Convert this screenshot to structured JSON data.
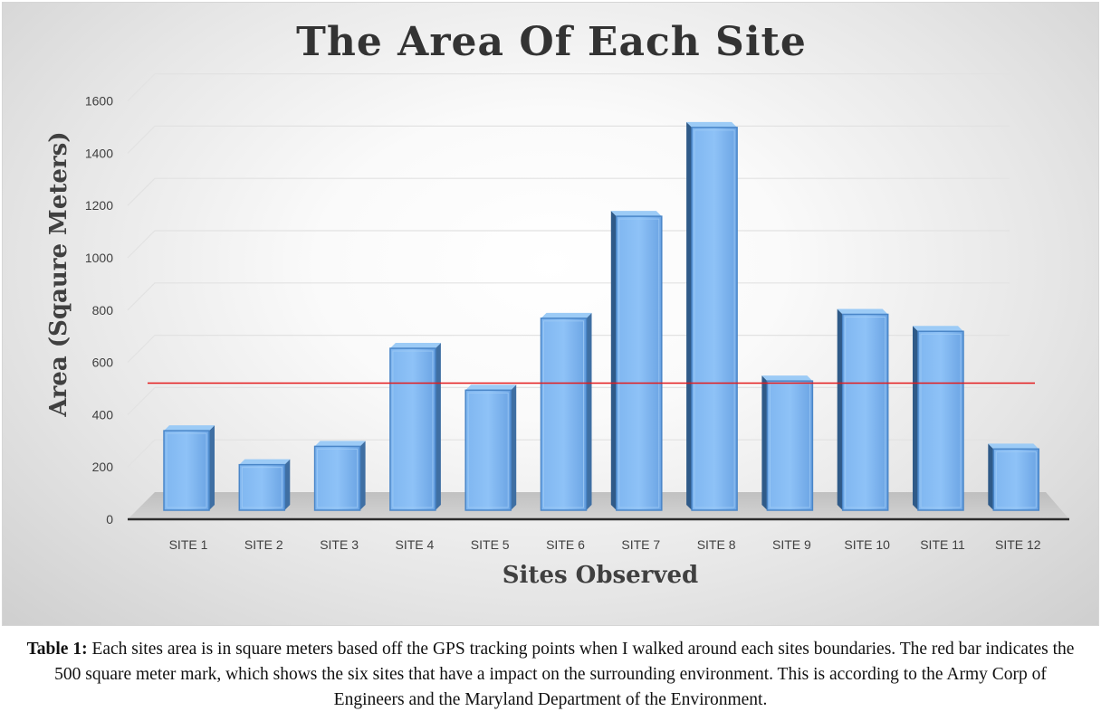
{
  "chart_data": {
    "type": "bar",
    "title": "The Area Of  Each Site",
    "xlabel": "Sites Observed",
    "ylabel": "Area (Sqaure Meters)",
    "categories": [
      "SITE 1",
      "SITE 2",
      "SITE 3",
      "SITE 4",
      "SITE 5",
      "SITE 6",
      "SITE 7",
      "SITE 8",
      "SITE 9",
      "SITE 10",
      "SITE 11",
      "SITE 12"
    ],
    "values": [
      235,
      105,
      175,
      550,
      390,
      665,
      1055,
      1395,
      425,
      680,
      615,
      165
    ],
    "yticks": [
      "0",
      "200",
      "400",
      "600",
      "800",
      "1000",
      "1200",
      "1400",
      "1600"
    ],
    "ylim": [
      0,
      1600
    ],
    "reference_line": {
      "value": 500,
      "color": "#e41a1c"
    },
    "bar_color": "#6aa3e3",
    "grid": true,
    "legend": "none"
  },
  "caption": {
    "label": "Table 1:",
    "text": " Each sites area is in square meters based off the GPS tracking points when I walked around each sites boundaries. The red bar indicates the 500 square meter mark, which shows the six sites that have a impact on the surrounding environment. This is according to the Army Corp of Engineers and the Maryland Department of the Environment."
  }
}
